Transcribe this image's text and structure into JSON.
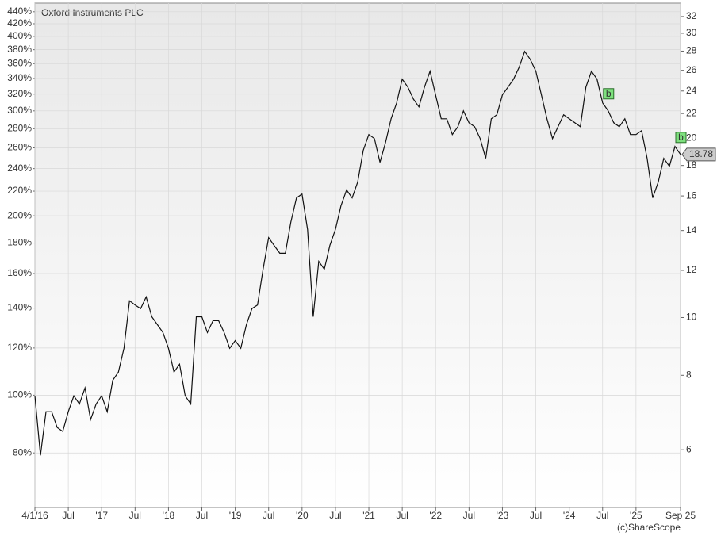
{
  "chart_data": {
    "type": "line",
    "title": "Oxford Instruments PLC",
    "source": "(c)ShareScope",
    "log_scale": true,
    "grid": true,
    "x": [
      "2016-01",
      "2016-02",
      "2016-03",
      "2016-04",
      "2016-05",
      "2016-06",
      "2016-07",
      "2016-08",
      "2016-09",
      "2016-10",
      "2016-11",
      "2016-12",
      "2017-01",
      "2017-02",
      "2017-03",
      "2017-04",
      "2017-05",
      "2017-06",
      "2017-07",
      "2017-08",
      "2017-09",
      "2017-10",
      "2017-11",
      "2017-12",
      "2018-01",
      "2018-02",
      "2018-03",
      "2018-04",
      "2018-05",
      "2018-06",
      "2018-07",
      "2018-08",
      "2018-09",
      "2018-10",
      "2018-11",
      "2018-12",
      "2019-01",
      "2019-02",
      "2019-03",
      "2019-04",
      "2019-05",
      "2019-06",
      "2019-07",
      "2019-08",
      "2019-09",
      "2019-10",
      "2019-11",
      "2019-12",
      "2020-01",
      "2020-02",
      "2020-03",
      "2020-04",
      "2020-05",
      "2020-06",
      "2020-07",
      "2020-08",
      "2020-09",
      "2020-10",
      "2020-11",
      "2020-12",
      "2021-01",
      "2021-02",
      "2021-03",
      "2021-04",
      "2021-05",
      "2021-06",
      "2021-07",
      "2021-08",
      "2021-09",
      "2021-10",
      "2021-11",
      "2021-12",
      "2022-01",
      "2022-02",
      "2022-03",
      "2022-04",
      "2022-05",
      "2022-06",
      "2022-07",
      "2022-08",
      "2022-09",
      "2022-10",
      "2022-11",
      "2022-12",
      "2023-01",
      "2023-02",
      "2023-03",
      "2023-04",
      "2023-05",
      "2023-06",
      "2023-07",
      "2023-08",
      "2023-09",
      "2023-10",
      "2023-11",
      "2023-12",
      "2024-01",
      "2024-02",
      "2024-03",
      "2024-04",
      "2024-05",
      "2024-06",
      "2024-07",
      "2024-08",
      "2024-09",
      "2024-10",
      "2024-11",
      "2024-12",
      "2025-01",
      "2025-02",
      "2025-03",
      "2025-04",
      "2025-05",
      "2025-06",
      "2025-07",
      "2025-08",
      "2025-09"
    ],
    "series": [
      {
        "name": "Oxford Instruments PLC",
        "color": "#111111",
        "axis": "y2",
        "values": [
          7.39,
          5.87,
          6.95,
          6.95,
          6.54,
          6.44,
          6.95,
          7.39,
          7.16,
          7.62,
          6.74,
          7.16,
          7.39,
          6.95,
          7.85,
          8.1,
          8.88,
          10.67,
          10.5,
          10.35,
          10.83,
          10.03,
          9.73,
          9.44,
          8.88,
          8.1,
          8.35,
          7.39,
          7.16,
          10.03,
          10.03,
          9.44,
          9.88,
          9.88,
          9.44,
          8.88,
          9.15,
          8.88,
          9.73,
          10.35,
          10.5,
          12.05,
          13.62,
          13.21,
          12.82,
          12.82,
          14.48,
          15.88,
          16.12,
          14.05,
          10.03,
          12.43,
          12.05,
          13.21,
          14.05,
          15.4,
          16.37,
          15.88,
          16.88,
          19.08,
          20.28,
          19.97,
          18.22,
          19.67,
          21.56,
          22.92,
          25.13,
          24.37,
          23.27,
          22.57,
          24.37,
          25.91,
          23.63,
          21.56,
          21.56,
          20.28,
          20.91,
          22.23,
          21.23,
          20.91,
          19.97,
          18.5,
          21.56,
          21.89,
          23.63,
          24.37,
          25.13,
          26.3,
          27.97,
          27.13,
          25.91,
          23.63,
          21.56,
          19.97,
          20.91,
          21.89,
          21.56,
          21.23,
          20.91,
          24.37,
          25.91,
          25.13,
          22.92,
          22.23,
          21.23,
          20.91,
          21.56,
          20.28,
          20.28,
          20.59,
          18.5,
          15.88,
          16.88,
          18.5,
          17.94,
          19.37,
          18.78
        ]
      }
    ],
    "annotations": [
      {
        "label": "b",
        "x": "2024-08"
      },
      {
        "label": "b",
        "x": "2025-09"
      }
    ],
    "xlim": [
      "2016-01",
      "2025-09"
    ],
    "xticks": [
      {
        "value": "2016-01",
        "label": "4/1/16"
      },
      {
        "value": "2016-07",
        "label": "Jul"
      },
      {
        "value": "2017-01",
        "label": "'17"
      },
      {
        "value": "2017-07",
        "label": "Jul"
      },
      {
        "value": "2018-01",
        "label": "'18"
      },
      {
        "value": "2018-07",
        "label": "Jul"
      },
      {
        "value": "2019-01",
        "label": "'19"
      },
      {
        "value": "2019-07",
        "label": "Jul"
      },
      {
        "value": "2020-01",
        "label": "'20"
      },
      {
        "value": "2020-07",
        "label": "Jul"
      },
      {
        "value": "2021-01",
        "label": "'21"
      },
      {
        "value": "2021-07",
        "label": "Jul"
      },
      {
        "value": "2022-01",
        "label": "'22"
      },
      {
        "value": "2022-07",
        "label": "Jul"
      },
      {
        "value": "2023-01",
        "label": "'23"
      },
      {
        "value": "2023-07",
        "label": "Jul"
      },
      {
        "value": "2024-01",
        "label": "'24"
      },
      {
        "value": "2024-07",
        "label": "Jul"
      },
      {
        "value": "2025-01",
        "label": "'25"
      },
      {
        "value": "2025-09",
        "label": "Sep 25"
      }
    ],
    "ylim": [
      64.8,
      454.8
    ],
    "yticks": [
      {
        "value": 80,
        "label": "80%"
      },
      {
        "value": 100,
        "label": "100%"
      },
      {
        "value": 120,
        "label": "120%"
      },
      {
        "value": 140,
        "label": "140%"
      },
      {
        "value": 160,
        "label": "160%"
      },
      {
        "value": 180,
        "label": "180%"
      },
      {
        "value": 200,
        "label": "200%"
      },
      {
        "value": 220,
        "label": "220%"
      },
      {
        "value": 240,
        "label": "240%"
      },
      {
        "value": 260,
        "label": "260%"
      },
      {
        "value": 280,
        "label": "280%"
      },
      {
        "value": 300,
        "label": "300%"
      },
      {
        "value": 320,
        "label": "320%"
      },
      {
        "value": 340,
        "label": "340%"
      },
      {
        "value": 360,
        "label": "360%"
      },
      {
        "value": 380,
        "label": "380%"
      },
      {
        "value": 400,
        "label": "400%"
      },
      {
        "value": 420,
        "label": "420%"
      },
      {
        "value": 440,
        "label": "440%"
      }
    ],
    "y2lim": [
      4.8,
      33.7
    ],
    "y2ticks": [
      6,
      8,
      10,
      12,
      14,
      16,
      18,
      20,
      22,
      24,
      26,
      28,
      30,
      32
    ]
  }
}
